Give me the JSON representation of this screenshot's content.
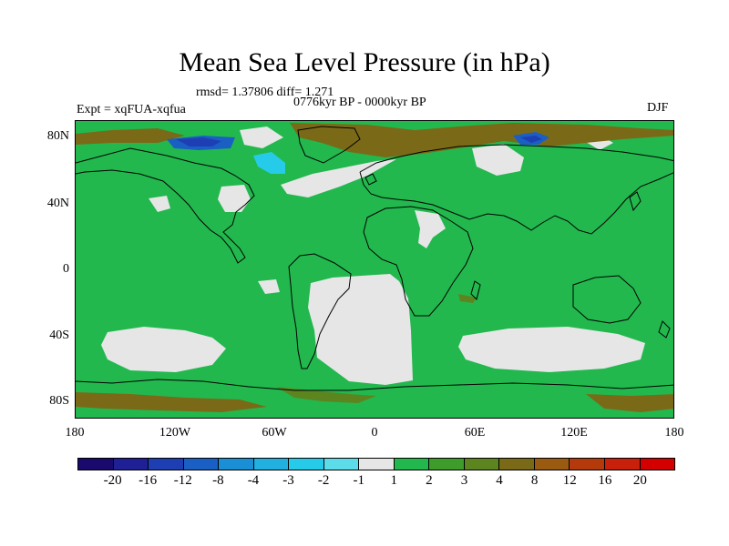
{
  "title": "Mean Sea Level Pressure (in hPa)",
  "stats": "rmsd= 1.37806 diff= 1.271",
  "left_label": "Expt = xqFUA-xqfua",
  "center_label": "0776kyr BP - 0000kyr BP",
  "right_label": "DJF",
  "lat_labels": [
    "80N",
    "40N",
    "0",
    "40S",
    "80S"
  ],
  "lon_labels": [
    "180",
    "120W",
    "60W",
    "0",
    "60E",
    "120E",
    "180"
  ],
  "colorbar": {
    "labels": [
      "-20",
      "-16",
      "-12",
      "-8",
      "-4",
      "-3",
      "-2",
      "-1",
      "1",
      "2",
      "3",
      "4",
      "8",
      "12",
      "16",
      "20"
    ],
    "colors": [
      "#1a0a6e",
      "#1f1f96",
      "#1e3fb4",
      "#1a5fc4",
      "#1a8fd6",
      "#21b0e0",
      "#25cbe8",
      "#5cdce8",
      "#e6e6e6",
      "#22b84e",
      "#3e9c2a",
      "#5c8520",
      "#7a6a18",
      "#9a5a10",
      "#b43a0c",
      "#c8200a",
      "#d40000"
    ]
  },
  "colors": {
    "base_field": "#22b84e",
    "near_zero": "#e6e6e6",
    "brown_high": "#7a6a18",
    "olive": "#5c8520",
    "blue_low": "#1a5fc4",
    "dark_blue_low": "#1e3fb4",
    "cyan_low": "#25cbe8"
  }
}
